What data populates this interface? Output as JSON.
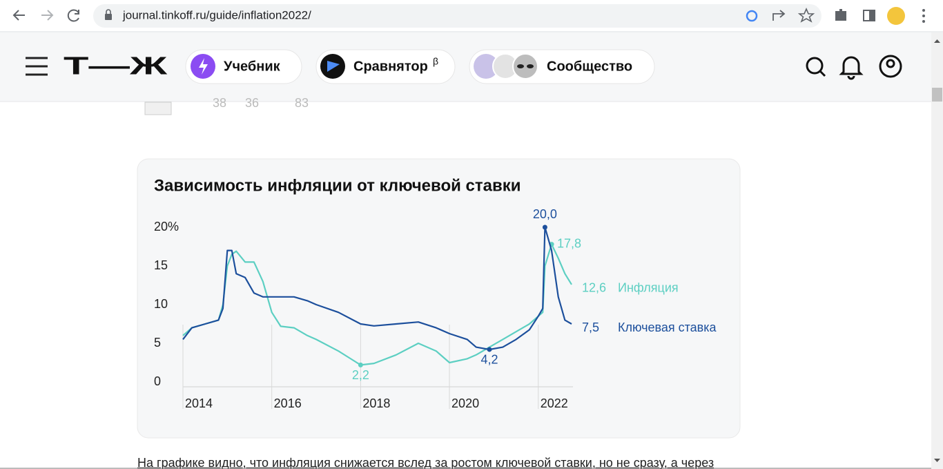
{
  "browser": {
    "url": "journal.tinkoff.ru/guide/inflation2022/"
  },
  "nav": {
    "logo": "Т—Ж",
    "items": [
      "Учебник",
      "Сравнятор",
      "Сообщество"
    ],
    "beta": "β"
  },
  "article": {
    "stats": [
      38,
      36,
      83
    ],
    "text": "На графике видно, что инфляция снижается вслед за ростом ключевой ставки, но не сразу, а через"
  },
  "chart_data": {
    "type": "line",
    "title": "Зависимость инфляции от ключевой ставки",
    "x": [
      2014.0,
      2014.2,
      2014.5,
      2014.8,
      2014.9,
      2015.0,
      2015.1,
      2015.2,
      2015.4,
      2015.6,
      2015.8,
      2016.0,
      2016.2,
      2016.5,
      2016.8,
      2017.0,
      2017.5,
      2018.0,
      2018.3,
      2018.8,
      2019.3,
      2019.7,
      2020.0,
      2020.4,
      2020.6,
      2020.9,
      2021.2,
      2021.5,
      2021.8,
      2022.0,
      2022.1,
      2022.15,
      2022.3,
      2022.45,
      2022.6,
      2022.75
    ],
    "series": [
      {
        "name": "Инфляция",
        "color": "#5ccfc2",
        "values": [
          6,
          7,
          7.5,
          8,
          10,
          15,
          16.5,
          16.9,
          15.5,
          15.5,
          13,
          9,
          7.2,
          7,
          6,
          5.5,
          4,
          2.2,
          2.4,
          3.5,
          5,
          4,
          2.5,
          3,
          3.5,
          4.5,
          5.5,
          6.5,
          7.5,
          8.5,
          9,
          15,
          17.8,
          16,
          14,
          12.6
        ],
        "value_labels": [
          null,
          null,
          null,
          null,
          null,
          null,
          null,
          null,
          null,
          null,
          null,
          null,
          null,
          null,
          null,
          null,
          null,
          "2,2",
          null,
          null,
          null,
          null,
          null,
          null,
          null,
          null,
          null,
          null,
          null,
          null,
          null,
          null,
          "17,8",
          null,
          null,
          "12,6"
        ]
      },
      {
        "name": "Ключевая ставка",
        "color": "#1c4f9c",
        "values": [
          5.5,
          7,
          7.5,
          8,
          9.5,
          17,
          17,
          14,
          13.5,
          11.5,
          11,
          11,
          11,
          11,
          10.5,
          10,
          9,
          7.5,
          7.25,
          7.5,
          7.75,
          7,
          6.25,
          5.5,
          4.5,
          4.2,
          4.5,
          5.5,
          6.75,
          8.5,
          9.5,
          20,
          17,
          11,
          8,
          7.5
        ],
        "value_labels": [
          null,
          null,
          null,
          null,
          null,
          null,
          null,
          null,
          null,
          null,
          null,
          null,
          null,
          null,
          null,
          null,
          null,
          null,
          null,
          null,
          null,
          null,
          null,
          null,
          null,
          "4,2",
          null,
          null,
          null,
          null,
          null,
          "20,0",
          null,
          null,
          null,
          "7,5"
        ]
      }
    ],
    "xlim": [
      2014,
      2022.75
    ],
    "xticks": [
      2014,
      2016,
      2018,
      2020,
      2022
    ],
    "ylim": [
      0,
      20
    ],
    "yticks": [
      0,
      5,
      10,
      15,
      {
        "value": 20,
        "label": "20%"
      }
    ],
    "grid": true
  }
}
